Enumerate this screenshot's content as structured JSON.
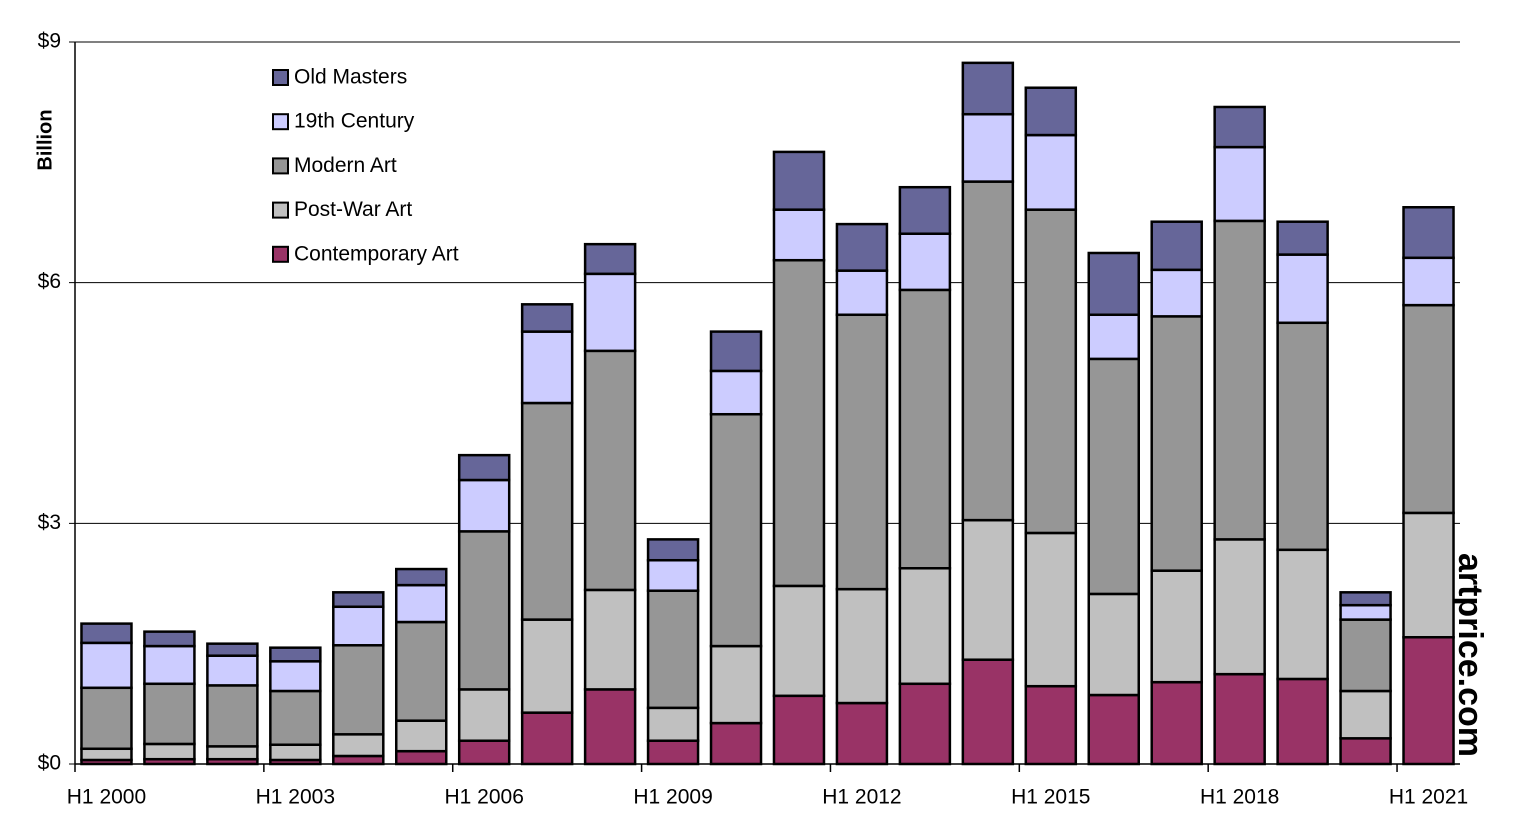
{
  "chart_data": {
    "type": "stacked_bar",
    "y_label": "Billion",
    "watermark": "artprice.com",
    "categories": [
      "H1 2000",
      null,
      null,
      "H1 2003",
      null,
      null,
      "H1 2006",
      null,
      null,
      "H1 2009",
      null,
      null,
      "H1 2012",
      null,
      null,
      "H1 2015",
      null,
      null,
      "H1 2018",
      null,
      null,
      "H1 2021"
    ],
    "series": [
      {
        "name": "Contemporary Art",
        "color": "#993366",
        "values": [
          0.05,
          0.06,
          0.06,
          0.05,
          0.1,
          0.16,
          0.29,
          0.64,
          0.93,
          0.29,
          0.51,
          0.85,
          0.76,
          1.0,
          1.3,
          0.97,
          0.86,
          1.02,
          1.12,
          1.06,
          0.32,
          1.58
        ]
      },
      {
        "name": "Post-War Art",
        "color": "#c0c0c0",
        "values": [
          0.14,
          0.19,
          0.16,
          0.19,
          0.27,
          0.38,
          0.64,
          1.16,
          1.24,
          0.41,
          0.96,
          1.37,
          1.42,
          1.44,
          1.74,
          1.91,
          1.26,
          1.39,
          1.68,
          1.61,
          0.59,
          1.55
        ]
      },
      {
        "name": "Modern Art",
        "color": "#969696",
        "values": [
          0.76,
          0.75,
          0.76,
          0.67,
          1.11,
          1.23,
          1.97,
          2.7,
          2.98,
          1.46,
          2.89,
          4.06,
          3.42,
          3.47,
          4.22,
          4.03,
          2.93,
          3.17,
          3.97,
          2.83,
          0.89,
          2.59
        ]
      },
      {
        "name": "19th Century",
        "color": "#ccccff",
        "values": [
          0.56,
          0.47,
          0.37,
          0.37,
          0.48,
          0.46,
          0.64,
          0.89,
          0.96,
          0.38,
          0.54,
          0.63,
          0.55,
          0.7,
          0.84,
          0.93,
          0.55,
          0.58,
          0.92,
          0.85,
          0.18,
          0.59
        ]
      },
      {
        "name": "Old Masters",
        "color": "#666699",
        "values": [
          0.24,
          0.18,
          0.15,
          0.17,
          0.18,
          0.2,
          0.31,
          0.34,
          0.37,
          0.26,
          0.49,
          0.72,
          0.58,
          0.58,
          0.64,
          0.59,
          0.77,
          0.6,
          0.5,
          0.41,
          0.16,
          0.63
        ]
      }
    ],
    "ylim": [
      0,
      9
    ],
    "yticks": [
      {
        "value": 0,
        "label": "$0"
      },
      {
        "value": 3,
        "label": "$3"
      },
      {
        "value": 6,
        "label": "$6"
      },
      {
        "value": 9,
        "label": "$9"
      }
    ],
    "grid": true,
    "legend": "top-left"
  }
}
